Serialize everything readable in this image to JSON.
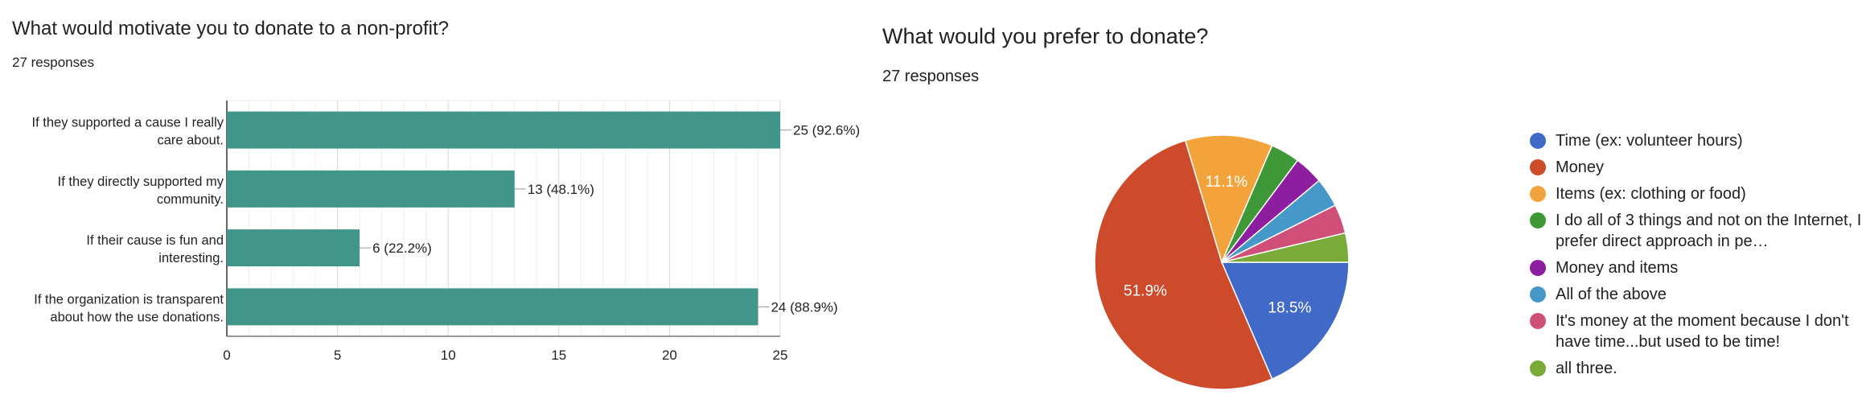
{
  "left": {
    "title": "What would motivate you to donate to a non-profit?",
    "responses": "27 responses"
  },
  "right": {
    "title": "What would you prefer to donate?",
    "responses": "27 responses"
  },
  "colors": {
    "bar": "#409688",
    "pie": [
      "#4169c8",
      "#cd4a2b",
      "#f2a33c",
      "#3f9838",
      "#8e1ea0",
      "#4698c9",
      "#d04f78",
      "#7aab39"
    ]
  },
  "chart_data": [
    {
      "type": "bar",
      "orientation": "horizontal",
      "title": "What would motivate you to donate to a non-profit?",
      "categories": [
        [
          "If they supported a cause I really",
          "care about."
        ],
        [
          "If they directly supported my",
          "community."
        ],
        [
          "If their cause is fun and",
          "interesting."
        ],
        [
          "If the organization is transparent",
          "about how the use donations."
        ]
      ],
      "values": [
        25,
        13,
        6,
        24
      ],
      "data_labels": [
        "25 (92.6%)",
        "13 (48.1%)",
        "6 (22.2%)",
        "24 (88.9%)"
      ],
      "xlim": [
        0,
        25
      ],
      "xticks": [
        "0",
        "5",
        "10",
        "15",
        "20",
        "25"
      ],
      "grid": true
    },
    {
      "type": "pie",
      "title": "What would you prefer to donate?",
      "labels": [
        "Time (ex: volunteer hours)",
        "Money",
        "Items (ex: clothing or food)",
        "I do all of 3 things and not on the Internet, I prefer direct approach in pe…",
        "Money and items",
        "All of the above",
        "It's money at the moment because I don't have time...but used to be time!",
        "all three."
      ],
      "values": [
        5,
        14,
        3,
        1,
        1,
        1,
        1,
        1
      ],
      "slice_labels": [
        "18.5%",
        "51.9%",
        "11.1%",
        "",
        "",
        "",
        "",
        ""
      ],
      "legend_position": "right"
    }
  ]
}
